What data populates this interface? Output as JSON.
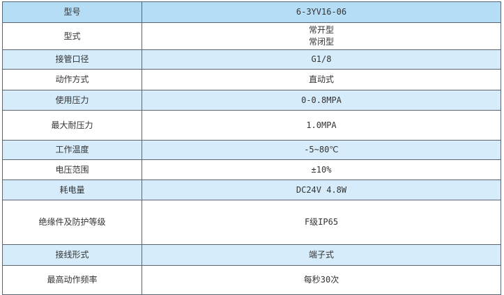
{
  "colors": {
    "header_bg": "#b5ddf6",
    "alt_row_bg": "#d6ecfa",
    "border": "#5a6470"
  },
  "rows": [
    {
      "label": "型号",
      "value": [
        "6-3YV16-06"
      ]
    },
    {
      "label": "型式",
      "value": [
        "常开型",
        "常闭型"
      ]
    },
    {
      "label": "接管口径",
      "value": [
        "G1/8"
      ]
    },
    {
      "label": "动作方式",
      "value": [
        "直动式"
      ]
    },
    {
      "label": "使用压力",
      "value": [
        "0-0.8MPA"
      ]
    },
    {
      "label": "最大耐压力",
      "value": [
        "1.0MPA"
      ]
    },
    {
      "label": "工作温度",
      "value": [
        "-5~80℃"
      ]
    },
    {
      "label": "电压范围",
      "value": [
        "±10%"
      ]
    },
    {
      "label": "耗电量",
      "value": [
        "DC24V 4.8W"
      ]
    },
    {
      "label": "绝缘件及防护等级",
      "value": [
        "F级IP65"
      ]
    },
    {
      "label": "接线形式",
      "value": [
        "端子式"
      ]
    },
    {
      "label": "最高动作频率",
      "value": [
        "每秒30次"
      ]
    }
  ]
}
